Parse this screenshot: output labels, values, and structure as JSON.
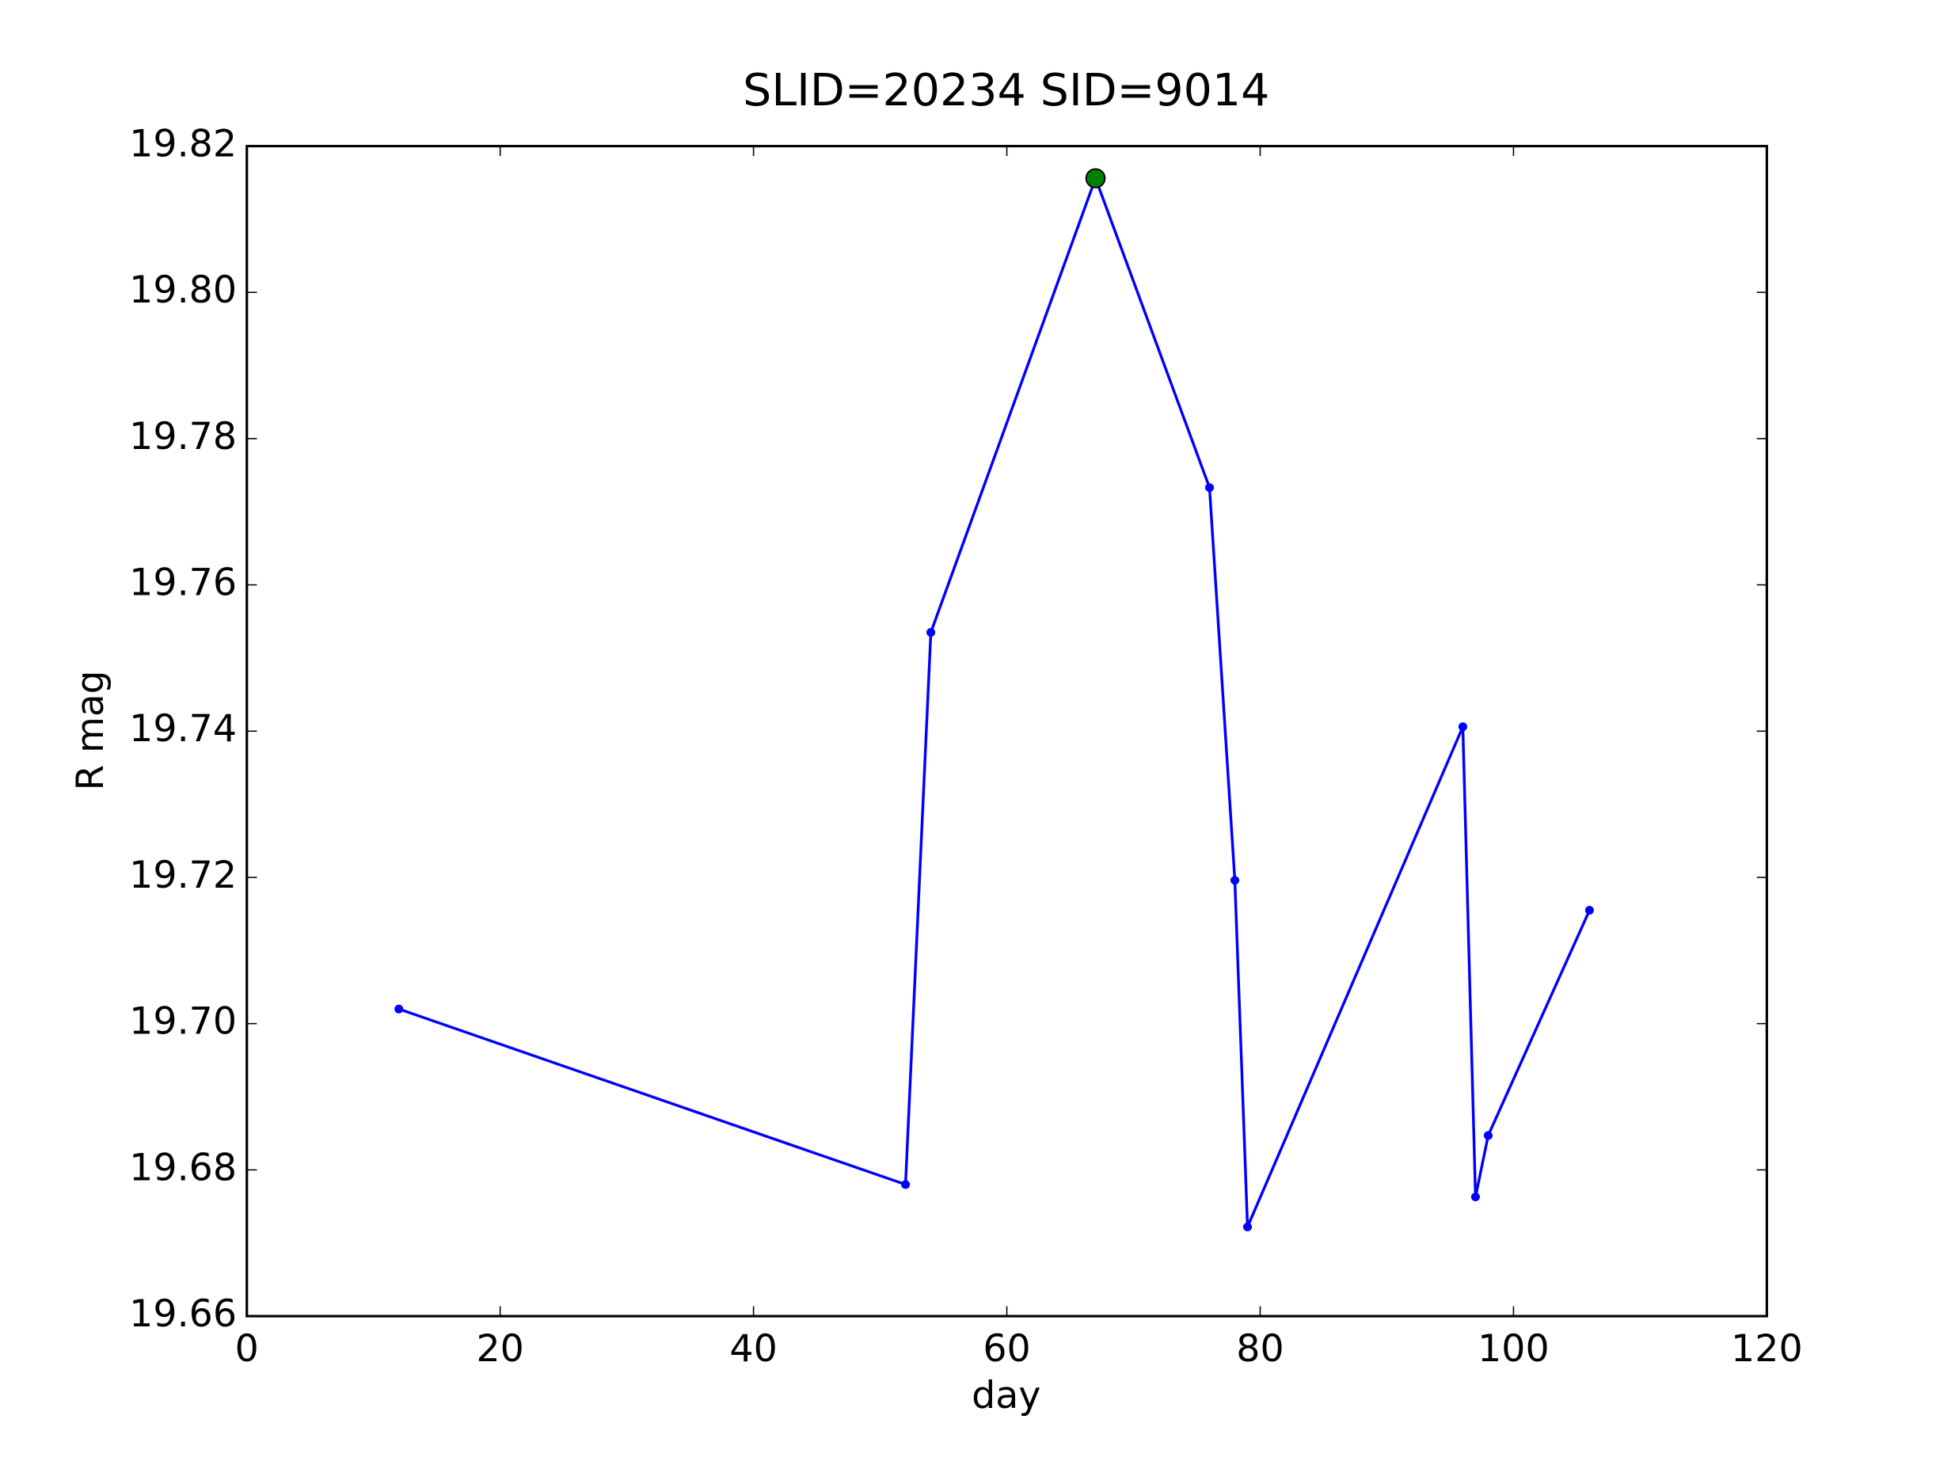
{
  "chart_data": {
    "type": "line",
    "title": "SLID=20234  SID=9014",
    "x_label": "day",
    "y_label": "R mag",
    "series": [
      {
        "color": "#0000ff",
        "x": [
          12,
          52,
          54,
          67,
          76,
          78,
          79,
          96,
          97,
          98,
          106
        ],
        "values": [
          19.702,
          19.678,
          19.7535,
          19.8156,
          19.7733,
          19.7196,
          19.6722,
          19.7406,
          19.6763,
          19.6847,
          19.7155
        ]
      }
    ],
    "highlight": {
      "color": "#008000",
      "x": 67,
      "y": 19.8156
    },
    "xlim": [
      0,
      120
    ],
    "xticks": [
      0,
      20,
      40,
      60,
      80,
      100,
      120
    ],
    "ylim": [
      19.66,
      19.82
    ],
    "yticks": [
      19.66,
      19.68,
      {
        "value": 19.7,
        "label": "19.70"
      },
      19.72,
      19.74,
      19.76,
      19.78,
      {
        "value": 19.8,
        "label": "19.80"
      },
      19.82
    ],
    "grid": false
  }
}
